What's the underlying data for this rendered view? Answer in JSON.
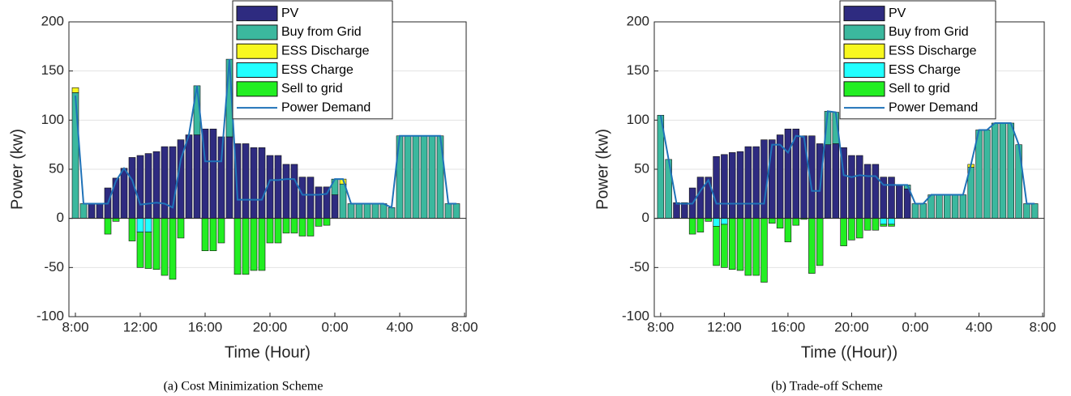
{
  "chart_data": [
    {
      "type": "bar",
      "stacked": true,
      "caption": "(a) Cost Minimization Scheme",
      "xlabel": "Time (Hour)",
      "ylabel": "Power (kw)",
      "x": [
        8,
        8.5,
        9,
        9.5,
        10,
        10.5,
        11,
        11.5,
        12,
        12.5,
        13,
        13.5,
        14,
        14.5,
        15,
        15.5,
        16,
        16.5,
        17,
        17.5,
        18,
        18.5,
        19,
        19.5,
        20,
        20.5,
        21,
        21.5,
        22,
        22.5,
        23,
        23.5,
        24,
        24.5,
        25,
        25.5,
        26,
        26.5,
        27,
        27.5,
        28,
        28.5,
        29,
        29.5,
        30,
        30.5,
        31,
        31.5
      ],
      "xlim": [
        7.6,
        32.1
      ],
      "xticks": [
        {
          "value": 8,
          "label": "8:00"
        },
        {
          "value": 12,
          "label": "12:00"
        },
        {
          "value": 16,
          "label": "16:00"
        },
        {
          "value": 20,
          "label": "20:00"
        },
        {
          "value": 24,
          "label": "0:00"
        },
        {
          "value": 28,
          "label": "4:00"
        },
        {
          "value": 32,
          "label": "8:00"
        }
      ],
      "ylim": [
        -100,
        200
      ],
      "yticks": [
        -100,
        -50,
        0,
        50,
        100,
        150,
        200
      ],
      "grid": true,
      "series": [
        {
          "name": "PV",
          "color": "#2e2b80",
          "values": [
            0,
            0,
            15,
            15,
            31,
            41,
            51,
            62,
            64,
            66,
            68,
            73,
            73,
            80,
            85,
            85,
            91,
            91,
            83,
            83,
            76,
            76,
            72,
            72,
            64,
            64,
            55,
            55,
            42,
            42,
            32,
            32,
            24,
            0,
            0,
            0,
            0,
            0,
            0,
            0,
            0,
            0,
            0,
            0,
            0,
            0,
            0,
            0
          ]
        },
        {
          "name": "Buy from Grid",
          "color": "#3bb89e",
          "values": [
            128,
            15,
            0,
            0,
            0,
            0,
            0,
            0,
            0,
            0,
            0,
            0,
            0,
            0,
            0,
            50,
            0,
            0,
            0,
            79,
            0,
            0,
            0,
            0,
            0,
            0,
            0,
            0,
            0,
            0,
            0,
            0,
            16,
            35,
            15,
            15,
            15,
            15,
            15,
            11,
            84,
            84,
            84,
            84,
            84,
            84,
            15,
            15
          ]
        },
        {
          "name": "ESS Discharge",
          "color": "#f7f71f",
          "values": [
            5,
            0,
            0,
            0,
            0,
            0,
            0,
            0,
            0,
            0,
            0,
            0,
            0,
            0,
            0,
            0,
            0,
            0,
            0,
            0,
            0,
            0,
            0,
            0,
            0,
            0,
            0,
            0,
            0,
            0,
            0,
            0,
            0,
            5,
            0,
            0,
            0,
            0,
            0,
            0,
            0,
            0,
            0,
            0,
            0,
            0,
            0,
            0
          ]
        },
        {
          "name": "ESS Charge",
          "color": "#22ffff",
          "values": [
            0,
            0,
            0,
            0,
            0,
            0,
            0,
            0,
            -14,
            -14,
            0,
            0,
            0,
            0,
            0,
            0,
            0,
            0,
            0,
            0,
            0,
            0,
            0,
            0,
            0,
            0,
            0,
            0,
            0,
            0,
            0,
            0,
            0,
            0,
            0,
            0,
            0,
            0,
            0,
            0,
            0,
            0,
            0,
            0,
            0,
            0,
            0,
            0
          ]
        },
        {
          "name": "Sell to grid",
          "color": "#22ee22",
          "values": [
            0,
            0,
            0,
            0,
            -16,
            -3,
            0,
            -23,
            -36,
            -37,
            -52,
            -58,
            -62,
            -20,
            0,
            0,
            -33,
            -33,
            -25,
            0,
            -57,
            -57,
            -53,
            -53,
            -25,
            -25,
            -15,
            -15,
            -18,
            -18,
            -8,
            -7,
            0,
            0,
            0,
            0,
            0,
            0,
            0,
            0,
            0,
            0,
            0,
            0,
            0,
            0,
            0,
            0
          ]
        },
        {
          "name": "Power Demand",
          "type": "line",
          "color": "#1f72b8",
          "values": [
            125,
            15,
            15,
            15,
            15,
            38,
            51,
            39,
            14,
            15,
            16,
            15,
            11,
            60,
            85,
            135,
            58,
            58,
            58,
            162,
            19,
            19,
            19,
            19,
            39,
            39,
            40,
            40,
            24,
            24,
            24,
            25,
            40,
            40,
            15,
            15,
            15,
            15,
            15,
            11,
            84,
            84,
            84,
            84,
            84,
            84,
            15,
            15
          ]
        }
      ]
    },
    {
      "type": "bar",
      "stacked": true,
      "caption": "(b) Trade-off Scheme",
      "xlabel": "Time ((Hour))",
      "ylabel": "Power (kw)",
      "x": [
        8,
        8.5,
        9,
        9.5,
        10,
        10.5,
        11,
        11.5,
        12,
        12.5,
        13,
        13.5,
        14,
        14.5,
        15,
        15.5,
        16,
        16.5,
        17,
        17.5,
        18,
        18.5,
        19,
        19.5,
        20,
        20.5,
        21,
        21.5,
        22,
        22.5,
        23,
        23.5,
        24,
        24.5,
        25,
        25.5,
        26,
        26.5,
        27,
        27.5,
        28,
        28.5,
        29,
        29.5,
        30,
        30.5,
        31,
        31.5
      ],
      "xlim": [
        7.6,
        32.1
      ],
      "xticks": [
        {
          "value": 8,
          "label": "8:00"
        },
        {
          "value": 12,
          "label": "12:00"
        },
        {
          "value": 16,
          "label": "16:00"
        },
        {
          "value": 20,
          "label": "20:00"
        },
        {
          "value": 24,
          "label": "0:00"
        },
        {
          "value": 28,
          "label": "4:00"
        },
        {
          "value": 32,
          "label": "8:00"
        }
      ],
      "ylim": [
        -100,
        200
      ],
      "yticks": [
        -100,
        -50,
        0,
        50,
        100,
        150,
        200
      ],
      "grid": true,
      "series": [
        {
          "name": "PV",
          "color": "#2e2b80",
          "values": [
            0,
            0,
            16,
            16,
            31,
            42,
            42,
            63,
            65,
            67,
            68,
            73,
            73,
            80,
            80,
            85,
            91,
            91,
            84,
            84,
            76,
            75,
            76,
            72,
            64,
            64,
            55,
            55,
            42,
            42,
            34,
            30,
            0,
            0,
            0,
            0,
            0,
            0,
            0,
            0,
            0,
            0,
            0,
            0,
            0,
            0,
            0,
            0
          ]
        },
        {
          "name": "Buy from Grid",
          "color": "#3bb89e",
          "values": [
            105,
            60,
            0,
            0,
            0,
            0,
            0,
            0,
            0,
            0,
            0,
            0,
            0,
            0,
            0,
            0,
            0,
            0,
            0,
            0,
            0,
            34,
            32,
            0,
            0,
            0,
            0,
            0,
            0,
            0,
            0,
            4,
            15,
            15,
            24,
            24,
            24,
            24,
            24,
            52,
            90,
            90,
            97,
            97,
            97,
            75,
            15,
            15
          ]
        },
        {
          "name": "ESS Discharge",
          "color": "#f7f71f",
          "values": [
            0,
            0,
            0,
            0,
            0,
            0,
            0,
            0,
            0,
            0,
            0,
            0,
            0,
            0,
            0,
            0,
            0,
            0,
            0,
            0,
            0,
            0,
            0,
            0,
            0,
            0,
            0,
            0,
            0,
            0,
            0,
            0,
            0,
            0,
            0,
            0,
            0,
            0,
            0,
            3,
            0,
            0,
            0,
            0,
            0,
            0,
            0,
            0
          ]
        },
        {
          "name": "ESS Charge",
          "color": "#22ffff",
          "values": [
            0,
            0,
            0,
            0,
            0,
            0,
            0,
            -8,
            -6,
            0,
            0,
            0,
            0,
            0,
            0,
            0,
            0,
            0,
            0,
            0,
            0,
            0,
            0,
            0,
            0,
            0,
            0,
            0,
            -6,
            -6,
            0,
            0,
            0,
            0,
            0,
            0,
            0,
            0,
            0,
            0,
            0,
            0,
            0,
            0,
            0,
            0,
            0,
            0
          ]
        },
        {
          "name": "Sell to grid",
          "color": "#22ee22",
          "values": [
            0,
            0,
            0,
            0,
            -16,
            -14,
            -3,
            -40,
            -44,
            -52,
            -53,
            -58,
            -58,
            -65,
            -5,
            -10,
            -24,
            -7,
            -1,
            -56,
            -48,
            0,
            0,
            -28,
            -22,
            -20,
            -12,
            -12,
            -2,
            -2,
            0,
            0,
            0,
            0,
            0,
            0,
            0,
            0,
            0,
            0,
            0,
            0,
            0,
            0,
            0,
            0,
            0,
            0
          ]
        },
        {
          "name": "Power Demand",
          "type": "line",
          "color": "#1f72b8",
          "values": [
            105,
            60,
            15,
            15,
            15,
            28,
            39,
            15,
            15,
            15,
            15,
            15,
            15,
            15,
            75,
            75,
            67,
            84,
            83,
            28,
            28,
            109,
            108,
            44,
            42,
            44,
            43,
            43,
            34,
            34,
            34,
            34,
            15,
            15,
            24,
            24,
            24,
            24,
            24,
            55,
            90,
            90,
            97,
            97,
            97,
            75,
            15,
            15
          ]
        }
      ]
    }
  ]
}
